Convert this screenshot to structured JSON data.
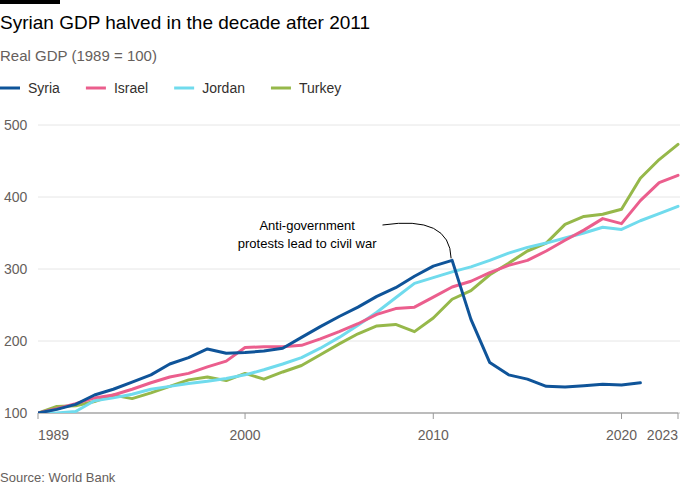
{
  "chart_data": {
    "type": "line",
    "title": "Syrian GDP halved in the decade after 2011",
    "subtitle": "Real GDP (1989 = 100)",
    "source": "Source: World Bank",
    "x": [
      1989,
      1990,
      1991,
      1992,
      1993,
      1994,
      1995,
      1996,
      1997,
      1998,
      1999,
      2000,
      2001,
      2002,
      2003,
      2004,
      2005,
      2006,
      2007,
      2008,
      2009,
      2010,
      2011,
      2012,
      2013,
      2014,
      2015,
      2016,
      2017,
      2018,
      2019,
      2020,
      2021,
      2022,
      2023
    ],
    "xlim": [
      1989,
      2023
    ],
    "xticks": [
      1989,
      2000,
      2010,
      2020,
      2023
    ],
    "ylim": [
      100,
      500
    ],
    "yticks": [
      100,
      200,
      300,
      400,
      500
    ],
    "grid": true,
    "legend": "top-left",
    "series": [
      {
        "name": "Syria",
        "color": "#0f5499",
        "values": [
          100,
          105,
          112,
          125,
          133,
          143,
          153,
          168,
          177,
          189,
          183,
          184,
          186,
          190,
          205,
          220,
          234,
          247,
          262,
          274,
          290,
          304,
          312,
          230,
          170,
          153,
          147,
          137,
          136,
          138,
          140,
          139,
          142,
          null,
          null
        ]
      },
      {
        "name": "Israel",
        "color": "#eb5e8d",
        "values": [
          100,
          106,
          113,
          121,
          125,
          133,
          142,
          150,
          155,
          164,
          172,
          191,
          192,
          192,
          194,
          203,
          213,
          224,
          237,
          245,
          247,
          261,
          275,
          283,
          295,
          305,
          312,
          325,
          340,
          354,
          370,
          363,
          395,
          420,
          430
        ]
      },
      {
        "name": "Jordan",
        "color": "#70dbed",
        "values": [
          100,
          100,
          102,
          117,
          121,
          126,
          133,
          137,
          141,
          144,
          148,
          153,
          160,
          168,
          177,
          190,
          205,
          222,
          240,
          260,
          280,
          288,
          296,
          303,
          312,
          322,
          330,
          336,
          343,
          350,
          358,
          355,
          367,
          377,
          387
        ]
      },
      {
        "name": "Turkey",
        "color": "#96b84a",
        "values": [
          100,
          109,
          110,
          116,
          125,
          120,
          128,
          137,
          146,
          150,
          145,
          155,
          147,
          157,
          166,
          181,
          196,
          210,
          221,
          223,
          213,
          232,
          258,
          270,
          292,
          308,
          325,
          336,
          362,
          373,
          376,
          383,
          426,
          452,
          473
        ]
      }
    ],
    "annotations": [
      {
        "lines": [
          "Anti-government",
          "protests lead to civil war"
        ],
        "x": 2011,
        "y": 312
      }
    ]
  }
}
